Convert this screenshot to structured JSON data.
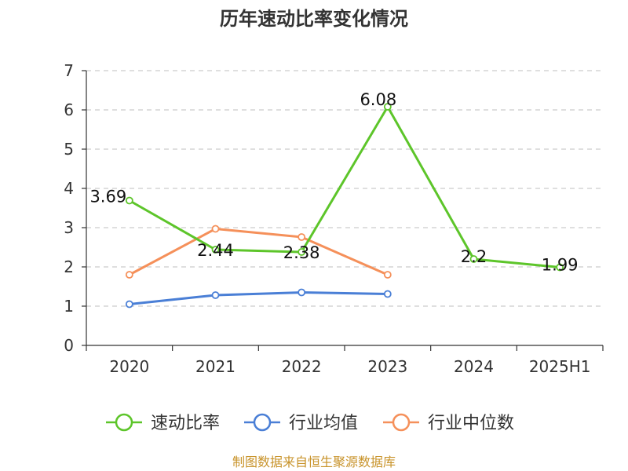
{
  "chart_data": {
    "type": "line",
    "title": "历年速动比率变化情况",
    "categories": [
      "2020",
      "2021",
      "2022",
      "2023",
      "2024",
      "2025H1"
    ],
    "ylim": [
      0,
      7
    ],
    "yticks": [
      0,
      1,
      2,
      3,
      4,
      5,
      6,
      7
    ],
    "grid": true,
    "legend_position": "bottom",
    "series": [
      {
        "name": "速动比率",
        "color": "#5dc52a",
        "values": [
          3.69,
          2.44,
          2.38,
          6.08,
          2.2,
          1.99
        ],
        "labels": [
          "3.69",
          "2.44",
          "2.38",
          "6.08",
          "2.2",
          "1.99"
        ]
      },
      {
        "name": "行业均值",
        "color": "#4a7fd6",
        "values": [
          1.05,
          1.28,
          1.35,
          1.31,
          null,
          null
        ]
      },
      {
        "name": "行业中位数",
        "color": "#f5905a",
        "values": [
          1.8,
          2.97,
          2.76,
          1.8,
          null,
          null
        ]
      }
    ]
  },
  "source": "制图数据来自恒生聚源数据库"
}
